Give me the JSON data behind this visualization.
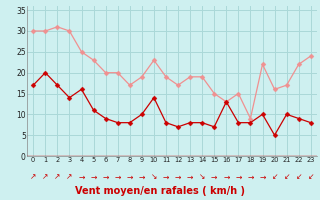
{
  "hours": [
    0,
    1,
    2,
    3,
    4,
    5,
    6,
    7,
    8,
    9,
    10,
    11,
    12,
    13,
    14,
    15,
    16,
    17,
    18,
    19,
    20,
    21,
    22,
    23
  ],
  "vent_moyen": [
    17,
    20,
    17,
    14,
    16,
    11,
    9,
    8,
    8,
    10,
    14,
    8,
    7,
    8,
    8,
    7,
    13,
    8,
    8,
    10,
    5,
    10,
    9,
    8
  ],
  "rafales": [
    30,
    30,
    31,
    30,
    25,
    23,
    20,
    20,
    17,
    19,
    23,
    19,
    17,
    19,
    19,
    15,
    13,
    15,
    9,
    22,
    16,
    17,
    22,
    24
  ],
  "xlabel": "Vent moyen/en rafales ( km/h )",
  "bg_color": "#cef0f0",
  "grid_color": "#aad8d8",
  "line_color_moyen": "#cc0000",
  "line_color_rafales": "#f09090",
  "ylim": [
    0,
    36
  ],
  "yticks": [
    0,
    5,
    10,
    15,
    20,
    25,
    30,
    35
  ],
  "marker_size": 2.5,
  "arrow_symbols": [
    "↗",
    "↗",
    "↗",
    "↗",
    "→",
    "→",
    "→",
    "→",
    "→",
    "→",
    "↘",
    "→",
    "→",
    "→",
    "↘",
    "→",
    "→",
    "→",
    "→",
    "→",
    "↙",
    "↙",
    "↙",
    "↙"
  ]
}
